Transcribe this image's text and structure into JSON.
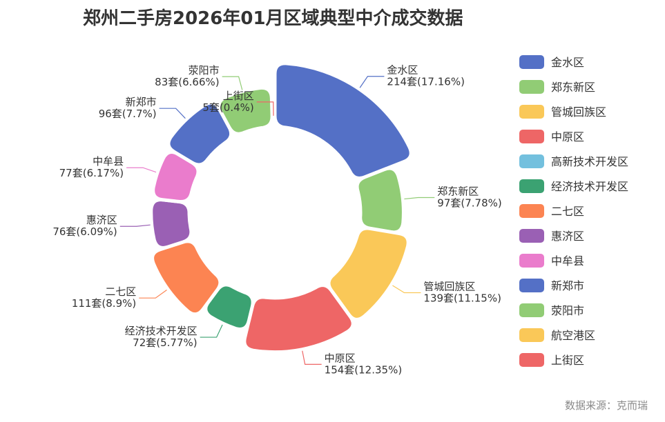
{
  "chart_data": {
    "type": "pie",
    "title": "郑州二手房2026年01月区域典型中介成交数据",
    "source": "数据来源：克而瑞",
    "unit": "套",
    "legend_position": "right",
    "slices": [
      {
        "name": "金水区",
        "value": 214,
        "label": "214套(17.16%)",
        "color": "#5470c6"
      },
      {
        "name": "郑东新区",
        "value": 97,
        "label": "97套(7.78%)",
        "color": "#91cc75"
      },
      {
        "name": "管城回族区",
        "value": 139,
        "label": "139套(11.15%)",
        "color": "#fac858"
      },
      {
        "name": "中原区",
        "value": 154,
        "label": "154套(12.35%)",
        "color": "#ee6666"
      },
      {
        "name": "高新技术开发区",
        "value": 0,
        "label": "",
        "color": "#73c0de"
      },
      {
        "name": "经济技术开发区",
        "value": 72,
        "label": "72套(5.77%)",
        "color": "#3ba272"
      },
      {
        "name": "二七区",
        "value": 111,
        "label": "111套(8.9%)",
        "color": "#fc8452"
      },
      {
        "name": "惠济区",
        "value": 76,
        "label": "76套(6.09%)",
        "color": "#9a60b4"
      },
      {
        "name": "中牟县",
        "value": 77,
        "label": "77套(6.17%)",
        "color": "#ea7ccc"
      },
      {
        "name": "新郑市",
        "value": 96,
        "label": "96套(7.7%)",
        "color": "#5470c6"
      },
      {
        "name": "荥阳市",
        "value": 83,
        "label": "83套(6.66%)",
        "color": "#91cc75"
      },
      {
        "name": "航空港区",
        "value": 0,
        "label": "",
        "color": "#fac858"
      },
      {
        "name": "上街区",
        "value": 5,
        "label": "5套(0.4%)",
        "color": "#ee6666"
      }
    ]
  }
}
